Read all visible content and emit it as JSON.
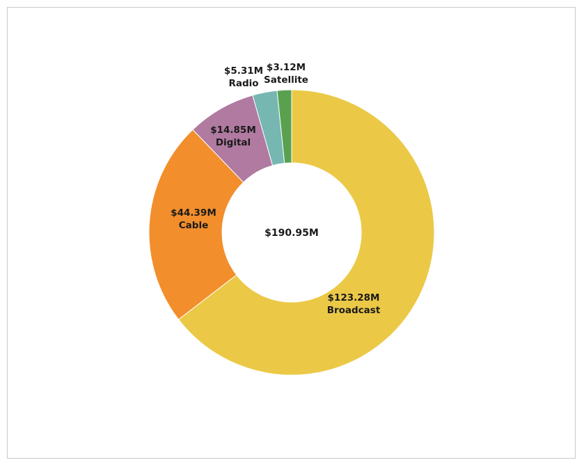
{
  "chart_data": {
    "type": "pie",
    "variant": "donut",
    "center_label": "$190.95M",
    "slices": [
      {
        "category": "Broadcast",
        "value": 123.28,
        "label": "$123.28M",
        "color": "#ebc947"
      },
      {
        "category": "Cable",
        "value": 44.39,
        "label": "$44.39M",
        "color": "#f28e2b"
      },
      {
        "category": "Digital",
        "value": 14.85,
        "label": "$14.85M",
        "color": "#b07aa1"
      },
      {
        "category": "Radio",
        "value": 5.31,
        "label": "$5.31M",
        "color": "#76b7b2"
      },
      {
        "category": "Satellite",
        "value": 3.12,
        "label": "$3.12M",
        "color": "#59a14f"
      }
    ],
    "legend": "none",
    "start_angle": "12 o'clock",
    "direction": "clockwise"
  }
}
